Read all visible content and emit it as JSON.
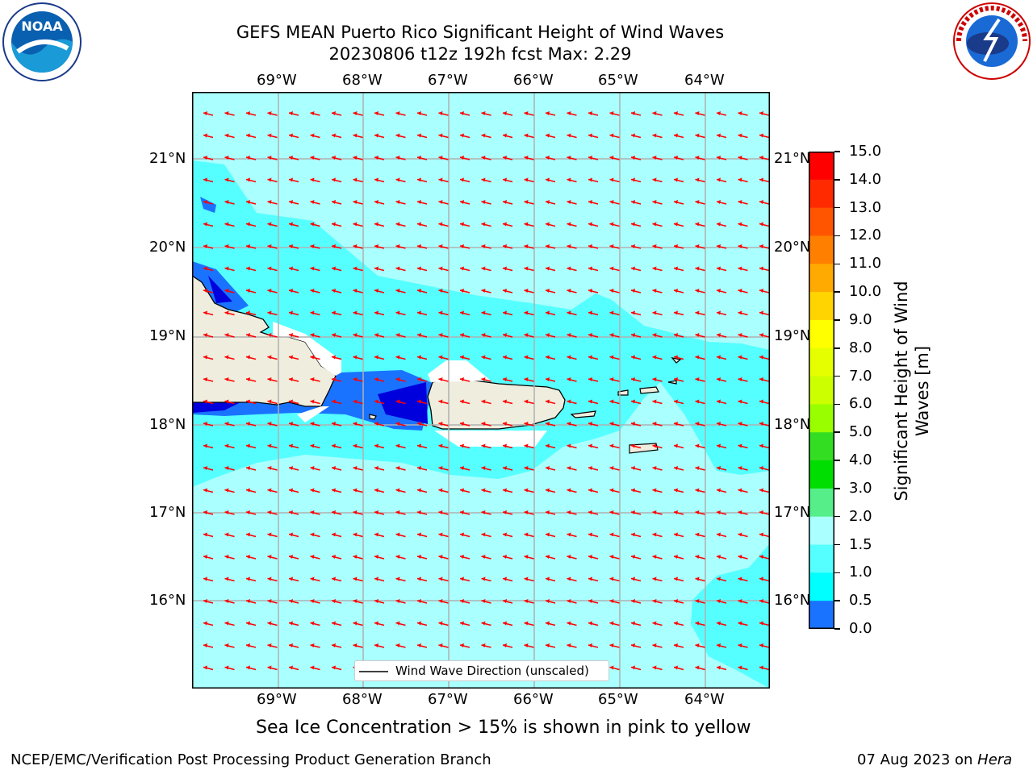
{
  "title": {
    "line1": "GEFS MEAN Puerto Rico Significant Height of Wind Waves",
    "line2": "20230806 t12z 192h fcst   Max: 2.29"
  },
  "axes": {
    "lon_labels": [
      "69°W",
      "68°W",
      "67°W",
      "66°W",
      "65°W",
      "64°W"
    ],
    "lat_labels_left": [
      "21°N",
      "20°N",
      "19°N",
      "18°N",
      "17°N",
      "16°N"
    ],
    "lat_labels_right": [
      "21°N",
      "20°N",
      "19°N",
      "18°N",
      "17°N",
      "16°N"
    ]
  },
  "legend": {
    "label": "Wind Wave Direction (unscaled)"
  },
  "colorbar": {
    "label_line1": "Significant Height of Wind",
    "label_line2": "Waves [m]",
    "ticks": [
      "15.0",
      "14.0",
      "13.0",
      "12.0",
      "11.0",
      "10.0",
      "9.0",
      "8.0",
      "7.0",
      "6.0",
      "5.0",
      "4.0",
      "3.0",
      "2.0",
      "1.5",
      "1.0",
      "0.5",
      "0.0"
    ],
    "colors": [
      "#ff0000",
      "#ff2a00",
      "#ff5500",
      "#ff8000",
      "#ffaa00",
      "#ffd400",
      "#ffff00",
      "#e6ff00",
      "#ccff00",
      "#99ff00",
      "#33dd22",
      "#00dd00",
      "#55ee88",
      "#aaffff",
      "#55ffff",
      "#00ffff",
      "#1a73ff",
      "#0000ff"
    ]
  },
  "notes": {
    "sea_ice": "Sea Ice Concentration > 15% is shown in pink to yellow",
    "producer": "NCEP/EMC/Verification Post Processing Product Generation Branch",
    "date_prefix": "07 Aug 2023 on ",
    "machine": "Hera"
  },
  "logos": {
    "left_text": "NOAA",
    "right_text": "NATIONAL WEATHER SERVICE"
  },
  "colors": {
    "field_background": "#aaffff",
    "band_cyan": "#55ffff",
    "band_blue": "#1a73ff",
    "band_dark": "#0000dd",
    "land": "#efedde",
    "arrow": "#ff0000"
  }
}
